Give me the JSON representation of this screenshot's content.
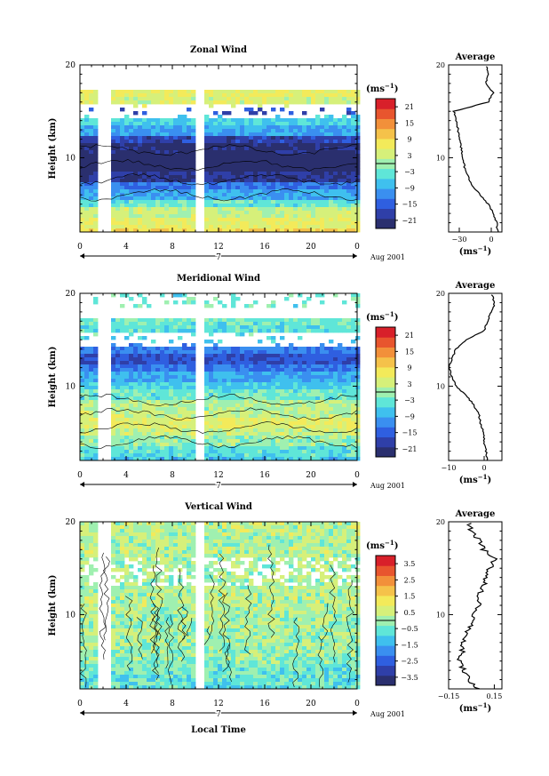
{
  "chart_data": [
    {
      "type": "heatmap",
      "title": "Zonal Wind",
      "ylabel": "Height (km)",
      "xlabel": "",
      "date_label": "Aug 2001",
      "day_label": "7",
      "x_ticks": [
        "0",
        "4",
        "8",
        "12",
        "16",
        "20",
        "0"
      ],
      "y_ticks": [
        "10",
        "20"
      ],
      "xlim": [
        0,
        24
      ],
      "ylim": [
        2,
        20
      ],
      "colorbar": {
        "unit_label": "(ms",
        "unit_exp": "−1",
        "unit_close": ")",
        "range": [
          -24,
          24
        ],
        "zero_line": 0,
        "tick_labels": [
          "21",
          "15",
          "9",
          "3",
          "−3",
          "−9",
          "−15",
          "−21"
        ],
        "tick_values": [
          21,
          15,
          9,
          3,
          -3,
          -9,
          -15,
          -21
        ]
      },
      "data_gaps_hours": [
        [
          1.6,
          2.6
        ],
        [
          9.9,
          10.7
        ]
      ],
      "heights_km": [
        2,
        3,
        4,
        5,
        6,
        7,
        8,
        9,
        10,
        11,
        12,
        13,
        14,
        15,
        16,
        17,
        18,
        19
      ],
      "values": [
        9,
        5,
        3,
        -3,
        -9,
        -13,
        -20,
        -24,
        -24,
        -22,
        -18,
        -10,
        -6,
        -17,
        4,
        6,
        null,
        null
      ],
      "average_profile": {
        "title": "Average",
        "x_ticks": [
          "−30",
          "0"
        ],
        "xlim": [
          -40,
          10
        ],
        "xlabel_unit": "(ms",
        "xlabel_exp": "−1",
        "xlabel_close": ")",
        "y_ticks": [
          "10",
          "20"
        ],
        "heights_km": [
          2,
          3,
          4,
          5,
          6,
          7,
          8,
          9,
          10,
          11,
          12,
          13,
          14,
          15,
          16,
          17,
          18,
          19,
          20
        ],
        "values": [
          6,
          5,
          2,
          -3,
          -10,
          -18,
          -22,
          -25,
          -27,
          -28,
          -30,
          -31,
          -33,
          -35,
          -3,
          2,
          -5,
          -3,
          -4
        ]
      }
    },
    {
      "type": "heatmap",
      "title": "Meridional Wind",
      "ylabel": "Height (km)",
      "xlabel": "",
      "date_label": "Aug 2001",
      "day_label": "7",
      "x_ticks": [
        "0",
        "4",
        "8",
        "12",
        "16",
        "20",
        "0"
      ],
      "y_ticks": [
        "10",
        "20"
      ],
      "xlim": [
        0,
        24
      ],
      "ylim": [
        2,
        20
      ],
      "colorbar": {
        "unit_label": "(ms",
        "unit_exp": "−1",
        "unit_close": ")",
        "range": [
          -24,
          24
        ],
        "zero_line": 0,
        "tick_labels": [
          "21",
          "15",
          "9",
          "3",
          "−3",
          "−9",
          "−15",
          "−21"
        ],
        "tick_values": [
          21,
          15,
          9,
          3,
          -3,
          -9,
          -15,
          -21
        ]
      },
      "data_gaps_hours": [
        [
          1.6,
          2.6
        ],
        [
          9.9,
          10.7
        ]
      ],
      "heights_km": [
        2,
        3,
        4,
        5,
        6,
        7,
        8,
        9,
        10,
        11,
        12,
        13,
        14,
        15,
        16,
        17,
        18,
        19
      ],
      "values": [
        -7,
        -4,
        0,
        3,
        5,
        3,
        1,
        -3,
        -6,
        -9,
        -13,
        -16,
        -12,
        -6,
        -4,
        -3,
        null,
        -3
      ],
      "average_profile": {
        "title": "Average",
        "x_ticks": [
          "−10",
          "0"
        ],
        "xlim": [
          -10,
          5
        ],
        "xlabel_unit": "(ms",
        "xlabel_exp": "−1",
        "xlabel_close": ")",
        "y_ticks": [
          "10",
          "20"
        ],
        "heights_km": [
          2,
          3,
          4,
          5,
          6,
          7,
          8,
          9,
          10,
          11,
          12,
          13,
          14,
          15,
          16,
          17,
          18,
          19,
          20
        ],
        "values": [
          1,
          0.5,
          0,
          0,
          -1,
          -1.5,
          -3,
          -5,
          -8,
          -9,
          -10,
          -9,
          -8,
          -5,
          0,
          1,
          2,
          3,
          2
        ]
      }
    },
    {
      "type": "heatmap",
      "title": "Vertical Wind",
      "ylabel": "Height (km)",
      "xlabel": "Local Time",
      "date_label": "Aug 2001",
      "day_label": "7",
      "x_ticks": [
        "0",
        "4",
        "8",
        "12",
        "16",
        "20",
        "0"
      ],
      "y_ticks": [
        "10",
        "20"
      ],
      "xlim": [
        0,
        24
      ],
      "ylim": [
        2,
        20
      ],
      "colorbar": {
        "unit_label": "(ms",
        "unit_exp": "−1",
        "unit_close": ")",
        "range": [
          -4,
          4
        ],
        "zero_line": 0,
        "tick_labels": [
          "3.5",
          "2.5",
          "1.5",
          "0.5",
          "−0.5",
          "−1.5",
          "−2.5",
          "−3.5"
        ],
        "tick_values": [
          3.5,
          2.5,
          1.5,
          0.5,
          -0.5,
          -1.5,
          -2.5,
          -3.5
        ]
      },
      "data_gaps_hours": [
        [
          1.6,
          2.6
        ],
        [
          9.9,
          10.7
        ]
      ],
      "heights_km": [
        2,
        3,
        4,
        5,
        6,
        7,
        8,
        9,
        10,
        11,
        12,
        13,
        14,
        15,
        16,
        17,
        18,
        19
      ],
      "values": [
        -0.8,
        -0.6,
        -0.4,
        -0.2,
        0,
        0.1,
        0.1,
        0.1,
        0.2,
        0.3,
        0.3,
        0.2,
        0.2,
        0.1,
        0.2,
        0.3,
        0.2,
        0.3
      ],
      "average_profile": {
        "title": "Average",
        "x_ticks": [
          "−0.15",
          "0.15"
        ],
        "xlim": [
          -0.15,
          0.2
        ],
        "xlabel_unit": "(ms",
        "xlabel_exp": "−1",
        "xlabel_close": ")",
        "y_ticks": [
          "10",
          "20"
        ],
        "heights_km": [
          2,
          3,
          4,
          5,
          6,
          7,
          8,
          9,
          10,
          11,
          12,
          13,
          14,
          15,
          16,
          17,
          18,
          19,
          20
        ],
        "values": [
          0.05,
          -0.02,
          -0.05,
          -0.08,
          -0.06,
          -0.05,
          -0.03,
          0.0,
          0.02,
          0.05,
          0.04,
          0.08,
          0.1,
          0.12,
          0.15,
          0.08,
          0.05,
          0.0,
          -0.02
        ]
      }
    }
  ]
}
